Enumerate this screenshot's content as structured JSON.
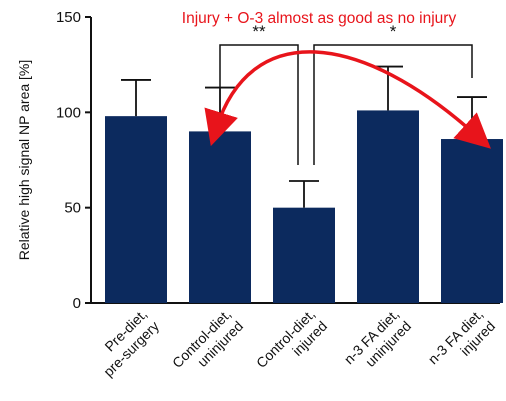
{
  "chart_data": {
    "type": "bar",
    "title": "",
    "xlabel": "",
    "ylabel": "Relative high signal NP area [%]",
    "ylim": [
      0,
      150
    ],
    "yticks": [
      0,
      50,
      100,
      150
    ],
    "grid": false,
    "legend": "none",
    "categories": [
      [
        "Pre-diet,",
        "pre-surgery"
      ],
      [
        "Control-diet,",
        "uninjured"
      ],
      [
        "Control-diet,",
        "injured"
      ],
      [
        "n-3 FA diet,",
        "uninjured"
      ],
      [
        "n-3 FA diet,",
        "injured"
      ]
    ],
    "values": [
      98,
      90,
      50,
      101,
      86
    ],
    "error_upper": [
      117,
      113,
      64,
      124,
      108
    ],
    "colors": {
      "bar": "#0c2a5e",
      "axis": "#111111",
      "annotation": "#e8141b"
    },
    "significance": [
      {
        "label": "**",
        "from_index": 1,
        "to_index": 2
      },
      {
        "label": "*",
        "from_index": 2,
        "to_index": 4
      }
    ],
    "annotation": {
      "text": "Injury + O-3 almost as good as no injury",
      "arrow_between": [
        1,
        4
      ]
    }
  }
}
